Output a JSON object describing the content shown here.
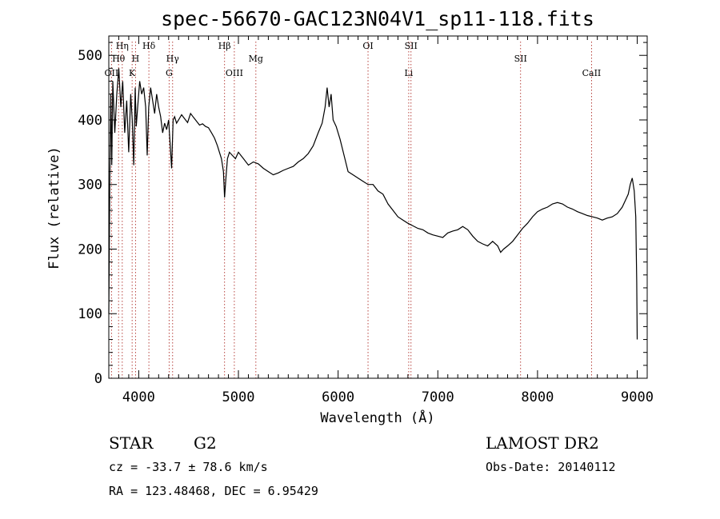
{
  "chart_data": {
    "type": "line",
    "title": "spec-56670-GAC123N04V1_sp11-118.fits",
    "xlabel": "Wavelength (Å)",
    "ylabel": "Flux (relative)",
    "xlim": [
      3700,
      9100
    ],
    "ylim": [
      0,
      530
    ],
    "xticks": [
      4000,
      5000,
      6000,
      7000,
      8000,
      9000
    ],
    "yticks": [
      0,
      100,
      200,
      300,
      400,
      500
    ],
    "grid": false,
    "series": [
      {
        "x": [
          3700,
          3710,
          3720,
          3730,
          3740,
          3760,
          3780,
          3800,
          3820,
          3840,
          3860,
          3880,
          3900,
          3920,
          3935,
          3950,
          3965,
          3975,
          3990,
          4010,
          4030,
          4050,
          4070,
          4085,
          4100,
          4120,
          4140,
          4160,
          4180,
          4200,
          4220,
          4240,
          4260,
          4280,
          4300,
          4320,
          4330,
          4345,
          4360,
          4380,
          4400,
          4430,
          4460,
          4490,
          4520,
          4550,
          4580,
          4610,
          4640,
          4670,
          4700,
          4730,
          4760,
          4790,
          4810,
          4830,
          4850,
          4861,
          4875,
          4890,
          4910,
          4940,
          4970,
          5000,
          5050,
          5100,
          5150,
          5200,
          5250,
          5300,
          5350,
          5400,
          5450,
          5500,
          5550,
          5600,
          5650,
          5700,
          5750,
          5800,
          5840,
          5870,
          5890,
          5910,
          5930,
          5950,
          5980,
          6020,
          6060,
          6100,
          6150,
          6200,
          6250,
          6300,
          6350,
          6400,
          6450,
          6500,
          6550,
          6600,
          6650,
          6700,
          6750,
          6800,
          6850,
          6900,
          6950,
          7000,
          7050,
          7100,
          7150,
          7200,
          7250,
          7300,
          7350,
          7400,
          7450,
          7500,
          7550,
          7600,
          7630,
          7660,
          7700,
          7750,
          7800,
          7850,
          7900,
          7950,
          8000,
          8050,
          8100,
          8150,
          8200,
          8250,
          8300,
          8350,
          8400,
          8450,
          8500,
          8550,
          8600,
          8650,
          8700,
          8750,
          8800,
          8850,
          8880,
          8910,
          8930,
          8950,
          8970,
          8985,
          8995,
          9000
        ],
        "y": [
          100,
          300,
          440,
          330,
          460,
          380,
          440,
          480,
          420,
          460,
          380,
          430,
          350,
          440,
          400,
          330,
          450,
          390,
          420,
          460,
          440,
          450,
          420,
          345,
          420,
          450,
          430,
          410,
          440,
          420,
          405,
          380,
          395,
          385,
          400,
          350,
          325,
          400,
          405,
          395,
          400,
          408,
          402,
          396,
          410,
          404,
          398,
          392,
          394,
          390,
          388,
          380,
          372,
          360,
          350,
          340,
          320,
          280,
          310,
          340,
          350,
          345,
          340,
          350,
          340,
          330,
          335,
          332,
          325,
          320,
          315,
          318,
          322,
          325,
          328,
          335,
          340,
          348,
          360,
          380,
          395,
          420,
          450,
          420,
          440,
          400,
          390,
          370,
          345,
          320,
          315,
          310,
          305,
          300,
          300,
          290,
          285,
          270,
          260,
          250,
          245,
          240,
          236,
          232,
          230,
          225,
          222,
          220,
          218,
          225,
          228,
          230,
          235,
          230,
          220,
          212,
          208,
          205,
          212,
          205,
          195,
          200,
          205,
          212,
          222,
          232,
          240,
          250,
          258,
          262,
          265,
          270,
          272,
          270,
          265,
          262,
          258,
          255,
          252,
          250,
          248,
          245,
          248,
          250,
          255,
          265,
          275,
          285,
          300,
          310,
          290,
          250,
          150,
          60
        ]
      }
    ],
    "lines": [
      {
        "x": 3727,
        "label": "OII",
        "row": 3
      },
      {
        "x": 3798,
        "label": "Hθ",
        "row": 2
      },
      {
        "x": 3835,
        "label": "Hη",
        "row": 1
      },
      {
        "x": 3934,
        "label": "K",
        "row": 3
      },
      {
        "x": 3968,
        "label": "H",
        "row": 2
      },
      {
        "x": 4102,
        "label": "Hδ",
        "row": 1
      },
      {
        "x": 4305,
        "label": "G",
        "row": 3
      },
      {
        "x": 4340,
        "label": "Hγ",
        "row": 2
      },
      {
        "x": 4861,
        "label": "Hβ",
        "row": 1
      },
      {
        "x": 4959,
        "label": "OIII",
        "row": 3
      },
      {
        "x": 5175,
        "label": "Mg",
        "row": 2
      },
      {
        "x": 6300,
        "label": "OI",
        "row": 1
      },
      {
        "x": 6708,
        "label": "Li",
        "row": 3
      },
      {
        "x": 6731,
        "label": "SII",
        "row": 1
      },
      {
        "x": 7830,
        "label": "SII",
        "row": 2
      },
      {
        "x": 8542,
        "label": "CaII",
        "row": 3
      }
    ]
  },
  "info": {
    "class_label": "STAR",
    "subclass": "G2",
    "survey": "LAMOST DR2",
    "redshift": "cz = -33.7 ± 78.6 km/s",
    "obs_date": "Obs-Date: 20140112",
    "coords": "RA = 123.48468, DEC =    6.95429"
  }
}
